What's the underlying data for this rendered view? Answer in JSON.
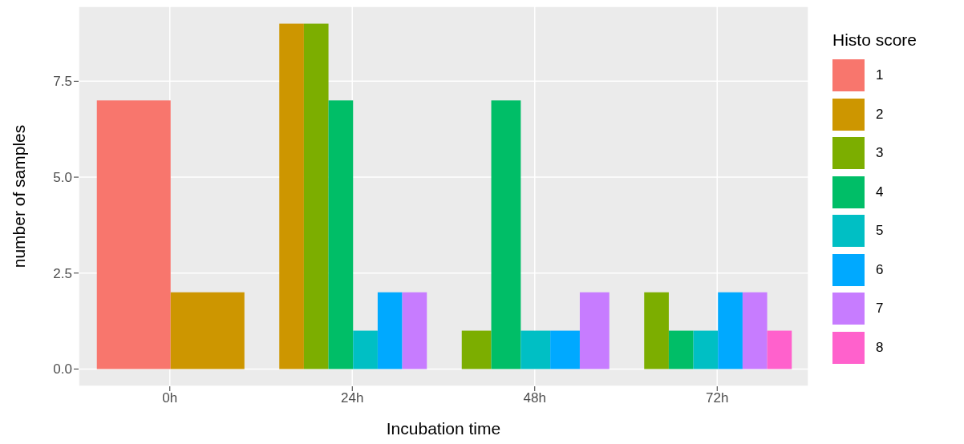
{
  "chart_data": {
    "type": "bar",
    "xlabel": "Incubation time",
    "ylabel": "number of samples",
    "legend_title": "Histo score",
    "categories": [
      "0h",
      "24h",
      "48h",
      "72h"
    ],
    "series": [
      {
        "name": "1",
        "color": "#f8766d",
        "values": [
          7,
          null,
          null,
          null
        ]
      },
      {
        "name": "2",
        "color": "#cd9600",
        "values": [
          2,
          9,
          null,
          null
        ]
      },
      {
        "name": "3",
        "color": "#7cae00",
        "values": [
          null,
          9,
          1,
          2
        ]
      },
      {
        "name": "4",
        "color": "#00be67",
        "values": [
          null,
          7,
          7,
          1
        ]
      },
      {
        "name": "5",
        "color": "#00bfc4",
        "values": [
          null,
          1,
          1,
          1
        ]
      },
      {
        "name": "6",
        "color": "#00a9ff",
        "values": [
          null,
          2,
          1,
          2
        ]
      },
      {
        "name": "7",
        "color": "#c77cff",
        "values": [
          null,
          2,
          2,
          2
        ]
      },
      {
        "name": "8",
        "color": "#ff61cc",
        "values": [
          null,
          null,
          null,
          1
        ]
      }
    ],
    "ylim": [
      -0.45,
      9.45
    ],
    "yticks": [
      {
        "value": 0,
        "label": "0.0"
      },
      {
        "value": 2.5,
        "label": "2.5"
      },
      {
        "value": 5,
        "label": "5.0"
      },
      {
        "value": 7.5,
        "label": "7.5"
      }
    ],
    "grid": true,
    "legend": "right"
  }
}
